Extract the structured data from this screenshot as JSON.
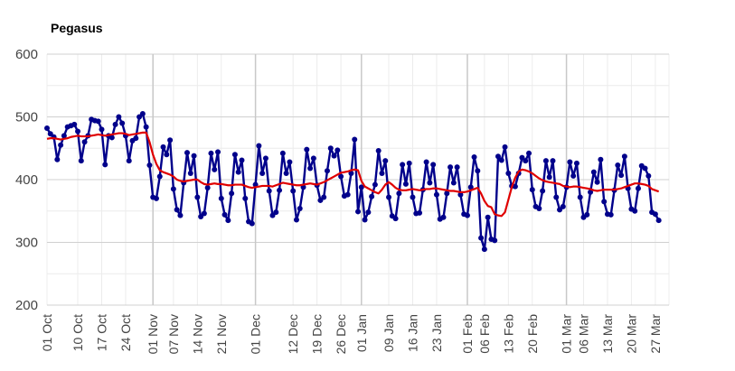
{
  "chart_data": {
    "type": "line",
    "title": "Pegasus",
    "xlabel": "",
    "ylabel": "",
    "ylim": [
      200,
      600
    ],
    "yticks": [
      200,
      300,
      400,
      500,
      600
    ],
    "x_start": "2023-10-01",
    "x_end": "2024-03-31",
    "major_gridlines": [
      "2023-11-01",
      "2023-12-01",
      "2024-01-01",
      "2024-02-01",
      "2024-03-01"
    ],
    "x_tick_labels": [
      {
        "date": "2023-10-01",
        "label": "01 Oct"
      },
      {
        "date": "2023-10-10",
        "label": "10 Oct"
      },
      {
        "date": "2023-10-17",
        "label": "17 Oct"
      },
      {
        "date": "2023-10-24",
        "label": "24 Oct"
      },
      {
        "date": "2023-11-01",
        "label": "01 Nov"
      },
      {
        "date": "2023-11-07",
        "label": "07 Nov"
      },
      {
        "date": "2023-11-14",
        "label": "14 Nov"
      },
      {
        "date": "2023-11-21",
        "label": "21 Nov"
      },
      {
        "date": "2023-12-01",
        "label": "01 Dec"
      },
      {
        "date": "2023-12-12",
        "label": "12 Dec"
      },
      {
        "date": "2023-12-19",
        "label": "19 Dec"
      },
      {
        "date": "2023-12-26",
        "label": "26 Dec"
      },
      {
        "date": "2024-01-01",
        "label": "01 Jan"
      },
      {
        "date": "2024-01-09",
        "label": "09 Jan"
      },
      {
        "date": "2024-01-16",
        "label": "16 Jan"
      },
      {
        "date": "2024-01-23",
        "label": "23 Jan"
      },
      {
        "date": "2024-02-01",
        "label": "01 Feb"
      },
      {
        "date": "2024-02-06",
        "label": "06 Feb"
      },
      {
        "date": "2024-02-13",
        "label": "13 Feb"
      },
      {
        "date": "2024-02-20",
        "label": "20 Feb"
      },
      {
        "date": "2024-03-01",
        "label": "01 Mar"
      },
      {
        "date": "2024-03-06",
        "label": "06 Mar"
      },
      {
        "date": "2024-03-13",
        "label": "13 Mar"
      },
      {
        "date": "2024-03-20",
        "label": "20 Mar"
      },
      {
        "date": "2024-03-27",
        "label": "27 Mar"
      }
    ],
    "grid": true,
    "legend": "none",
    "series": [
      {
        "color": "#00008b",
        "marker": "circle",
        "start": "2023-10-01",
        "values": [
          482,
          473,
          468,
          432,
          455,
          470,
          484,
          486,
          488,
          477,
          430,
          460,
          470,
          496,
          494,
          493,
          480,
          424,
          470,
          467,
          488,
          500,
          490,
          470,
          430,
          462,
          466,
          500,
          505,
          484,
          423,
          372,
          370,
          405,
          452,
          440,
          463,
          385,
          352,
          343,
          395,
          443,
          410,
          438,
          372,
          341,
          346,
          387,
          442,
          416,
          444,
          370,
          344,
          335,
          378,
          440,
          412,
          431,
          370,
          333,
          330,
          392,
          454,
          410,
          434,
          382,
          343,
          348,
          383,
          442,
          410,
          428,
          382,
          336,
          354,
          388,
          448,
          418,
          434,
          391,
          367,
          372,
          414,
          450,
          438,
          447,
          405,
          374,
          376,
          410,
          464,
          349,
          388,
          336,
          348,
          373,
          392,
          446,
          410,
          430,
          372,
          342,
          338,
          378,
          424,
          393,
          426,
          372,
          346,
          347,
          384,
          428,
          395,
          424,
          376,
          337,
          340,
          378,
          420,
          395,
          420,
          376,
          345,
          343,
          388,
          436,
          414,
          307,
          289,
          340,
          305,
          303,
          437,
          431,
          452,
          410,
          390,
          389,
          410,
          435,
          430,
          442,
          384,
          357,
          354,
          382,
          430,
          404,
          430,
          372,
          352,
          357,
          388,
          428,
          406,
          426,
          372,
          340,
          344,
          380,
          412,
          396,
          432,
          365,
          345,
          344,
          383,
          423,
          407,
          437,
          386,
          353,
          350,
          386,
          422,
          418,
          406,
          348,
          345,
          335
        ]
      },
      {
        "color": "#e00000",
        "marker": "none",
        "start": "2023-10-01",
        "values": [
          465,
          466,
          466,
          465,
          464,
          465,
          466,
          468,
          469,
          470,
          469,
          469,
          469,
          470,
          471,
          472,
          471,
          470,
          471,
          472,
          473,
          474,
          474,
          473,
          471,
          472,
          473,
          474,
          475,
          475,
          460,
          440,
          425,
          415,
          412,
          410,
          408,
          405,
          400,
          398,
          397,
          398,
          399,
          400,
          400,
          396,
          393,
          392,
          393,
          394,
          393,
          393,
          392,
          391,
          391,
          392,
          392,
          392,
          390,
          388,
          387,
          388,
          389,
          390,
          390,
          390,
          389,
          391,
          393,
          395,
          394,
          393,
          392,
          391,
          391,
          392,
          393,
          394,
          393,
          392,
          394,
          396,
          399,
          402,
          405,
          408,
          411,
          412,
          413,
          415,
          416,
          415,
          398,
          389,
          386,
          383,
          380,
          378,
          384,
          392,
          396,
          392,
          387,
          384,
          383,
          383,
          384,
          385,
          384,
          383,
          384,
          385,
          385,
          386,
          386,
          385,
          384,
          383,
          382,
          382,
          381,
          380,
          380,
          381,
          383,
          385,
          387,
          378,
          366,
          358,
          356,
          345,
          343,
          342,
          348,
          368,
          388,
          403,
          413,
          416,
          415,
          413,
          410,
          406,
          402,
          399,
          397,
          396,
          395,
          394,
          393,
          390,
          389,
          388,
          389,
          389,
          388,
          387,
          386,
          385,
          383,
          382,
          383,
          384,
          384,
          384,
          384,
          385,
          386,
          388,
          390,
          392,
          394,
          394,
          393,
          392,
          390,
          385,
          383,
          381
        ]
      }
    ]
  }
}
